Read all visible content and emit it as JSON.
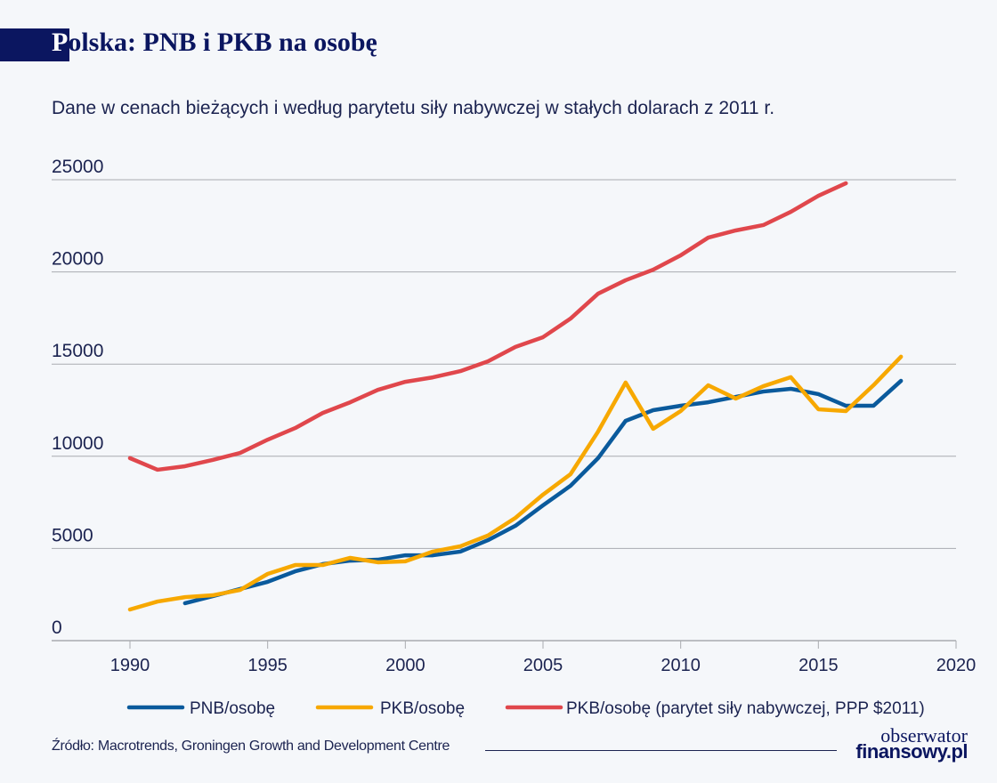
{
  "header": {
    "title_first": "P",
    "title_rest": "olska: PNB i PKB na osobę",
    "subtitle": "Dane w cenach bieżących i według parytetu siły nabywczej  w stałych dolarach z 2011 r."
  },
  "chart_data": {
    "type": "line",
    "title": "Polska: PNB i PKB na osobę",
    "subtitle": "Dane w cenach bieżących i według parytetu siły nabywczej  w stałych dolarach z 2011 r.",
    "xlabel": "",
    "ylabel": "",
    "xlim": [
      1990,
      2020
    ],
    "ylim": [
      0,
      25000
    ],
    "xticks": [
      "1990",
      "1995",
      "2000",
      "2005",
      "2010",
      "2015",
      "2020"
    ],
    "yticks": [
      "0",
      "5000",
      "10000",
      "15000",
      "20000",
      "25000"
    ],
    "grid": "horizontal",
    "legend": "bottom",
    "series": [
      {
        "name": "PNB/osobę",
        "color": "#0a5a9c",
        "x": [
          1992,
          1993,
          1994,
          1995,
          1996,
          1997,
          1998,
          1999,
          2000,
          2001,
          2002,
          2003,
          2004,
          2005,
          2006,
          2007,
          2008,
          2009,
          2010,
          2011,
          2012,
          2013,
          2014,
          2015,
          2016,
          2017,
          2018
        ],
        "values": [
          2030,
          2410,
          2800,
          3190,
          3760,
          4150,
          4340,
          4390,
          4630,
          4630,
          4830,
          5450,
          6230,
          7340,
          8400,
          9900,
          11920,
          12500,
          12740,
          12930,
          13220,
          13510,
          13660,
          13370,
          12740,
          12740,
          14090
        ]
      },
      {
        "name": "PKB/osobę",
        "color": "#f7a800",
        "x": [
          1990,
          1991,
          1992,
          1993,
          1994,
          1995,
          1996,
          1997,
          1998,
          1999,
          2000,
          2001,
          2002,
          2003,
          2004,
          2005,
          2006,
          2007,
          2008,
          2009,
          2010,
          2011,
          2012,
          2013,
          2014,
          2015,
          2016,
          2017,
          2018
        ],
        "values": [
          1690,
          2120,
          2360,
          2460,
          2750,
          3620,
          4100,
          4100,
          4490,
          4250,
          4300,
          4830,
          5120,
          5700,
          6660,
          7920,
          9030,
          11340,
          14000,
          11490,
          12450,
          13850,
          13130,
          13800,
          14290,
          12550,
          12450,
          13850,
          15400
        ]
      },
      {
        "name": "PKB/osobę (parytet siły nabywczej, PPP $2011)",
        "color": "#e0474c",
        "x": [
          1990,
          1991,
          1992,
          1993,
          1994,
          1995,
          1996,
          1997,
          1998,
          1999,
          2000,
          2001,
          2002,
          2003,
          2004,
          2005,
          2006,
          2007,
          2008,
          2009,
          2010,
          2011,
          2012,
          2013,
          2014,
          2015,
          2016
        ],
        "values": [
          9900,
          9270,
          9460,
          9800,
          10180,
          10900,
          11530,
          12350,
          12930,
          13600,
          14040,
          14280,
          14620,
          15150,
          15930,
          16460,
          17470,
          18820,
          19550,
          20120,
          20900,
          21860,
          22250,
          22540,
          23260,
          24130,
          24810
        ]
      }
    ]
  },
  "footer": {
    "source": "Źródło: Macrotrends, Groningen Growth and Development Centre",
    "logo_line1": "obserwator",
    "logo_line2": "finansowy.pl"
  }
}
